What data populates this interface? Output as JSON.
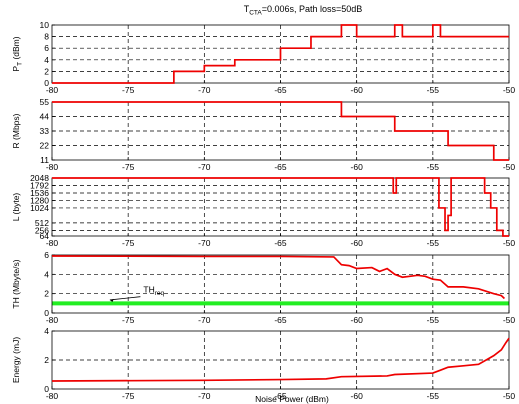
{
  "title_main": "T",
  "title_sub": "CTA",
  "title_rest": "=0.006s, Path loss=50dB",
  "xlabel": "Noise Power (dBm)",
  "x_ticks": [
    -80,
    -75,
    -70,
    -65,
    -60,
    -55,
    -50
  ],
  "colors": {
    "series": "#ee0000",
    "threshold": "#22ee22",
    "axes": "#000000"
  },
  "chart_data": [
    {
      "type": "line",
      "ylabel_main": "P",
      "ylabel_sub": "T",
      "ylabel_rest": " (dBm)",
      "xlim": [
        -80,
        -50
      ],
      "ylim": [
        0,
        10
      ],
      "y_ticks": [
        0,
        2,
        4,
        6,
        8,
        10
      ],
      "grid": true,
      "step": true,
      "series": [
        {
          "x": [
            -80,
            -72,
            -72,
            -70,
            -70,
            -68,
            -68,
            -65,
            -65,
            -63,
            -63,
            -61,
            -61,
            -60,
            -60,
            -57.5,
            -57.5,
            -57,
            -57,
            -55,
            -55,
            -54.5,
            -54.5,
            -50
          ],
          "y": [
            0,
            0,
            2,
            2,
            3,
            3,
            4,
            4,
            6,
            6,
            8,
            8,
            10,
            10,
            8,
            8,
            10,
            10,
            8,
            8,
            10,
            10,
            8,
            8
          ]
        }
      ]
    },
    {
      "type": "line",
      "ylabel_main": "R (Mbps)",
      "xlim": [
        -80,
        -50
      ],
      "ylim": [
        11,
        55
      ],
      "y_ticks": [
        11,
        22,
        33,
        44,
        55
      ],
      "grid": true,
      "step": true,
      "series": [
        {
          "x": [
            -80,
            -61,
            -61,
            -57.5,
            -57.5,
            -54,
            -54,
            -51,
            -51,
            -50
          ],
          "y": [
            55,
            55,
            44,
            44,
            33,
            33,
            22,
            22,
            11,
            11
          ]
        }
      ]
    },
    {
      "type": "line",
      "ylabel_main": "L (byte)",
      "xlim": [
        -80,
        -50
      ],
      "ylim": [
        64,
        2048
      ],
      "y_ticks": [
        64,
        256,
        512,
        1024,
        1280,
        1536,
        1792,
        2048
      ],
      "grid": true,
      "step": true,
      "series": [
        {
          "x": [
            -80,
            -57.6,
            -57.6,
            -57.4,
            -57.4,
            -54.6,
            -54.6,
            -54.2,
            -54.2,
            -54,
            -54,
            -53.8,
            -53.8,
            -51.6,
            -51.6,
            -51.2,
            -51.2,
            -50.8,
            -50.8,
            -50.4,
            -50.4,
            -50
          ],
          "y": [
            2048,
            2048,
            1536,
            1536,
            2048,
            2048,
            1024,
            1024,
            256,
            256,
            768,
            768,
            2048,
            2048,
            1536,
            1536,
            1024,
            1024,
            256,
            256,
            64,
            64
          ]
        }
      ]
    },
    {
      "type": "line",
      "ylabel_main": "TH (Mbyte/s)",
      "xlim": [
        -80,
        -50
      ],
      "ylim": [
        0,
        6
      ],
      "y_ticks": [
        0,
        2,
        4,
        6
      ],
      "grid": true,
      "annotation": {
        "text": "TH",
        "sub": "req"
      },
      "threshold": 1.0,
      "series": [
        {
          "x": [
            -80,
            -70,
            -65,
            -61.5,
            -61,
            -60.5,
            -60,
            -59,
            -58.5,
            -58,
            -57.5,
            -57,
            -56,
            -55.5,
            -55,
            -54.5,
            -54,
            -53,
            -52,
            -51,
            -50.5,
            -50.3
          ],
          "y": [
            5.9,
            5.85,
            5.85,
            5.8,
            5.0,
            4.9,
            4.6,
            4.7,
            4.3,
            4.6,
            4.0,
            3.7,
            3.9,
            3.8,
            3.5,
            3.4,
            2.7,
            2.7,
            2.5,
            2.0,
            1.8,
            1.5
          ]
        }
      ]
    },
    {
      "type": "line",
      "ylabel_main": "Energy (mJ)",
      "xlim": [
        -80,
        -50
      ],
      "ylim": [
        0,
        4
      ],
      "y_ticks": [
        0,
        2,
        4
      ],
      "grid": true,
      "series": [
        {
          "x": [
            -80,
            -70,
            -65,
            -62,
            -61,
            -58,
            -57.5,
            -55,
            -54.5,
            -54,
            -53,
            -52,
            -51.5,
            -51,
            -50.5,
            -50.2,
            -50
          ],
          "y": [
            0.55,
            0.6,
            0.65,
            0.7,
            0.85,
            0.9,
            1.0,
            1.1,
            1.3,
            1.5,
            1.6,
            1.7,
            2.0,
            2.3,
            2.7,
            3.2,
            3.5
          ]
        }
      ]
    }
  ]
}
